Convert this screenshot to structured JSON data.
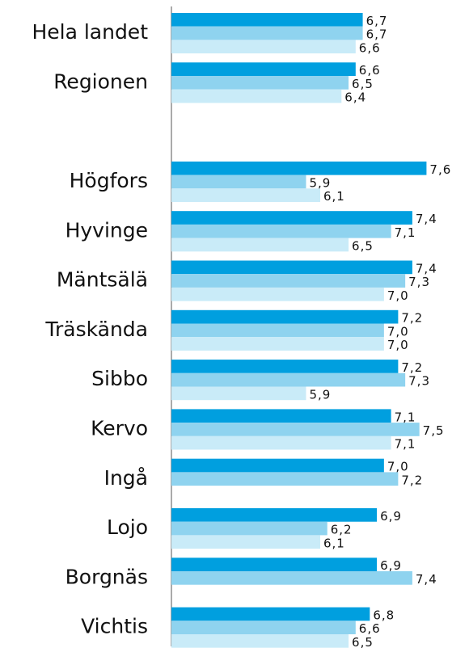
{
  "chart_data": {
    "type": "bar",
    "orientation": "horizontal",
    "categories": [
      "Hela landet",
      "Regionen",
      null,
      "Högfors",
      "Hyvinge",
      "Mäntsälä",
      "Träskända",
      "Sibbo",
      "Kervo",
      "Ingå",
      "Lojo",
      "Borgnäs",
      "Vichtis"
    ],
    "xlim": [
      4,
      8.2
    ],
    "series": [
      {
        "color": "#009fdf",
        "values": [
          6.7,
          6.6,
          null,
          7.6,
          7.4,
          7.4,
          7.2,
          7.2,
          7.1,
          7.0,
          6.9,
          6.9,
          6.8
        ],
        "value_labels": [
          "6,7",
          "6,6",
          null,
          "7,6",
          "7,4",
          "7,4",
          "7,2",
          "7,2",
          "7,1",
          "7,0",
          "6,9",
          "6,9",
          "6,8"
        ]
      },
      {
        "color": "#8fd3ef",
        "values": [
          6.7,
          6.5,
          null,
          5.9,
          7.1,
          7.3,
          7.0,
          7.3,
          7.5,
          7.2,
          6.2,
          7.4,
          6.6
        ],
        "value_labels": [
          "6,7",
          "6,5",
          null,
          "5,9",
          "7,1",
          "7,3",
          "7,0",
          "7,3",
          "7,5",
          "7,2",
          "6,2",
          "7,4",
          "6,6"
        ]
      },
      {
        "color": "#c9ebf8",
        "values": [
          6.6,
          6.4,
          null,
          6.1,
          6.5,
          7.0,
          7.0,
          5.9,
          7.1,
          null,
          6.1,
          null,
          6.5
        ],
        "value_labels": [
          "6,6",
          "6,4",
          null,
          "6,1",
          "6,5",
          "7,0",
          "7,0",
          "5,9",
          "7,1",
          null,
          "6,1",
          null,
          "6,5"
        ]
      }
    ]
  }
}
